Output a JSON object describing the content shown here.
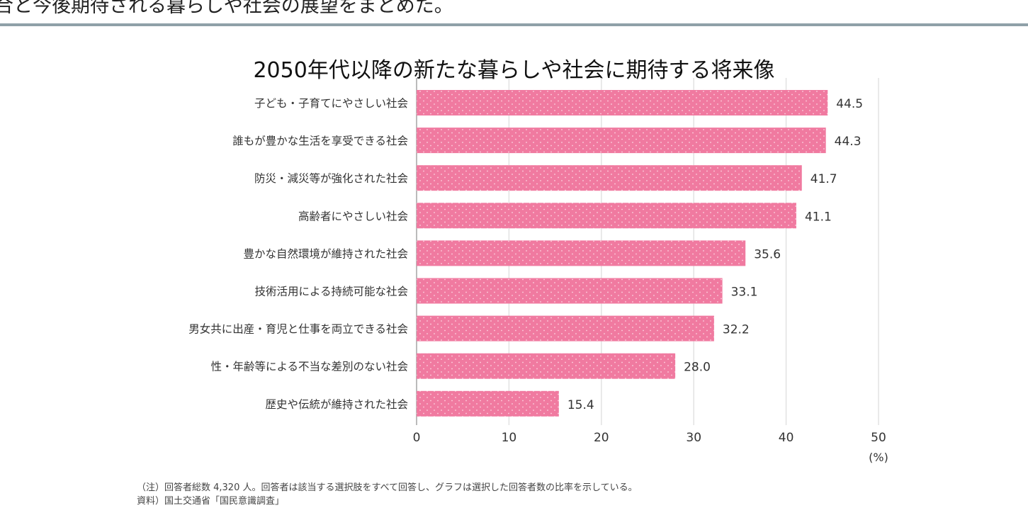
{
  "page": {
    "lead_text": "合と今後期待される暮らしや社会の展望をまとめた。",
    "note": "（注）回答者総数 4,320 人。回答者は該当する選択肢をすべて回答し、グラフは選択した回答者数の比率を示している。",
    "source": "資料）国土交通省「国民意識調査」"
  },
  "chart_data": {
    "type": "bar",
    "orientation": "horizontal",
    "title": "2050年代以降の新たな暮らしや社会に期待する将来像",
    "categories": [
      "子ども・子育てにやさしい社会",
      "誰もが豊かな生活を享受できる社会",
      "防災・減災等が強化された社会",
      "高齢者にやさしい社会",
      "豊かな自然環境が維持された社会",
      "技術活用による持続可能な社会",
      "男女共に出産・育児と仕事を両立できる社会",
      "性・年齢等による不当な差別のない社会",
      "歴史や伝統が維持された社会"
    ],
    "values": [
      44.5,
      44.3,
      41.7,
      41.1,
      35.6,
      33.1,
      32.2,
      28.0,
      15.4
    ],
    "value_labels": [
      "44.5",
      "44.3",
      "41.7",
      "41.1",
      "35.6",
      "33.1",
      "32.2",
      "28.0",
      "15.4"
    ],
    "xlim": [
      0,
      50
    ],
    "xticks": [
      "0",
      "10",
      "20",
      "30",
      "40",
      "50"
    ],
    "xunit": "(%)",
    "grid": true,
    "bar_color": "#f07aa0",
    "bar_pattern": "white dots"
  }
}
